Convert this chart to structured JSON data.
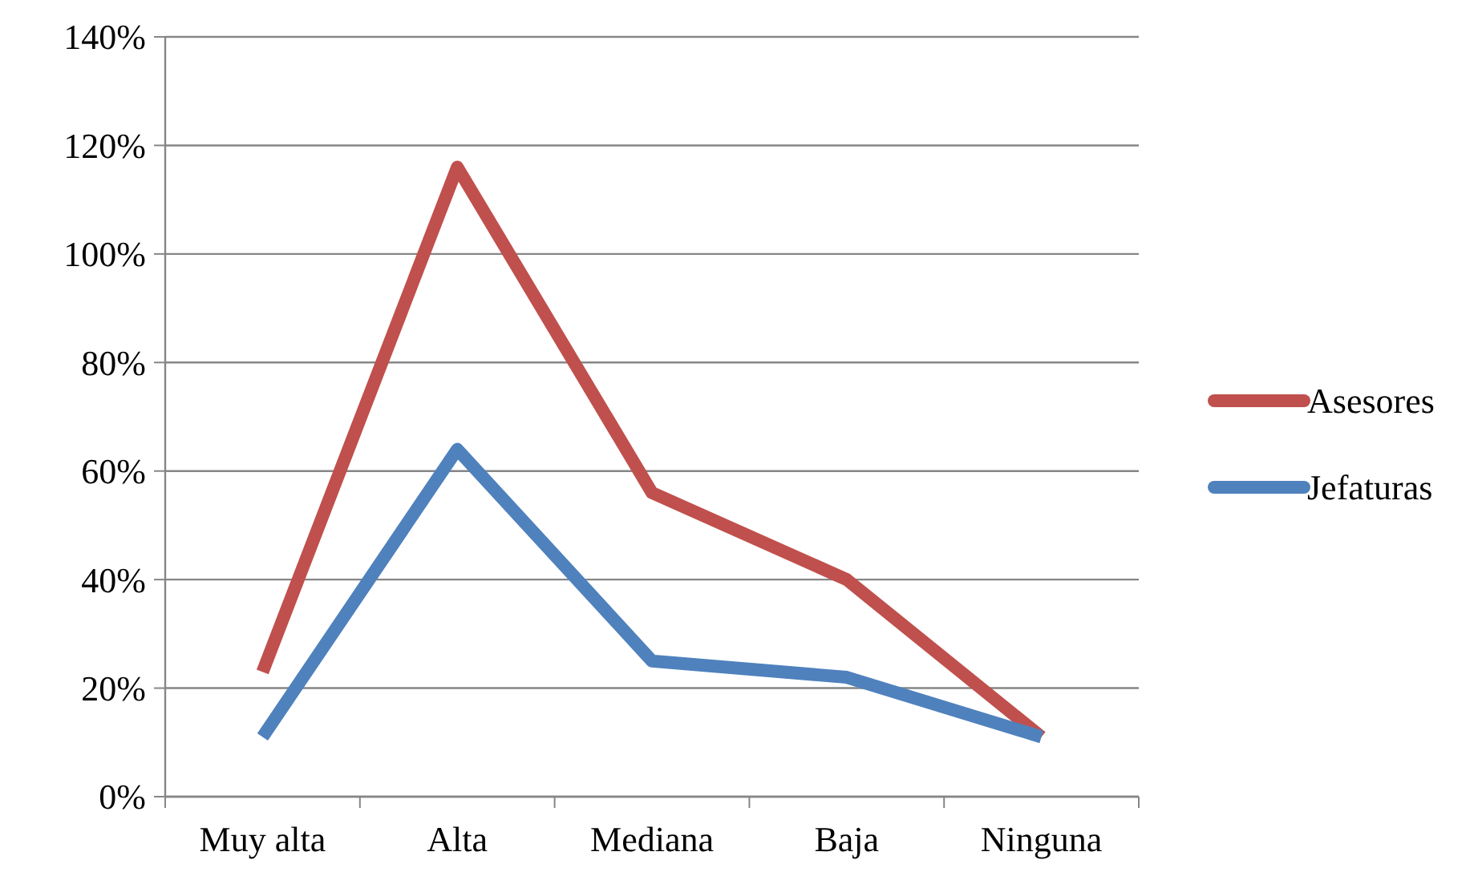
{
  "chart_data": {
    "type": "line",
    "categories": [
      "Muy alta",
      "Alta",
      "Mediana",
      "Baja",
      "Ninguna"
    ],
    "series": [
      {
        "name": "Asesores",
        "color": "#c0504d",
        "values": [
          0.23,
          1.16,
          0.56,
          0.4,
          0.11
        ]
      },
      {
        "name": "Jefaturas",
        "color": "#4f81bd",
        "values": [
          0.11,
          0.64,
          0.25,
          0.22,
          0.11
        ]
      }
    ],
    "ylim": [
      0,
      1.4
    ],
    "yticks": [
      {
        "value": 0,
        "label": "0%"
      },
      {
        "value": 0.2,
        "label": "20%"
      },
      {
        "value": 0.4,
        "label": "40%"
      },
      {
        "value": 0.6,
        "label": "60%"
      },
      {
        "value": 0.8,
        "label": "80%"
      },
      {
        "value": 1,
        "label": "100%"
      },
      {
        "value": 1.2,
        "label": "120%"
      },
      {
        "value": 1.4,
        "label": "140%"
      }
    ],
    "grid": "y",
    "legend": "right",
    "marker": "none",
    "line_style": "solid"
  }
}
